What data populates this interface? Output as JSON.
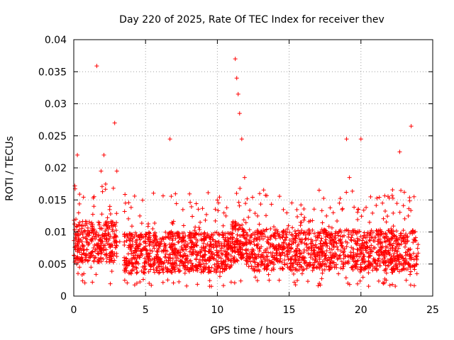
{
  "chart_data": {
    "type": "scatter",
    "title": "Day 220 of 2025, Rate Of TEC Index for receiver thev",
    "xlabel": "GPS time / hours",
    "ylabel": "ROTI / TECUs",
    "xlim": [
      0,
      25
    ],
    "ylim": [
      0,
      0.04
    ],
    "xticks": [
      0,
      5,
      10,
      15,
      20,
      25
    ],
    "xtick_labels": [
      "0",
      "5",
      "10",
      "15",
      "20",
      "25"
    ],
    "yticks": [
      0,
      0.005,
      0.01,
      0.015,
      0.02,
      0.025,
      0.03,
      0.035,
      0.04
    ],
    "ytick_labels": [
      "0",
      "0.005",
      "0.01",
      "0.015",
      "0.02",
      "0.025",
      "0.03",
      "0.035",
      "0.04"
    ],
    "grid": true,
    "marker": "+",
    "colors": {
      "series": "#ff0000",
      "grid": "#a0a0a0",
      "axis": "#000000"
    },
    "series": [
      {
        "x": [
          0.1,
          0.15,
          0.25,
          0.3,
          0.4,
          0.55,
          0.7,
          0.85,
          1.0,
          1.2,
          1.4,
          1.6,
          1.75,
          1.9,
          2.1,
          2.3,
          2.5,
          2.7,
          2.85,
          3.0,
          3.2,
          3.6,
          3.8,
          4.0,
          4.3,
          4.6,
          4.9,
          5.2,
          5.5,
          5.8,
          6.1,
          6.4,
          6.7,
          7.0,
          7.3,
          7.6,
          7.9,
          8.2,
          8.5,
          8.8,
          9.1,
          9.4,
          9.7,
          10.0,
          10.3,
          10.6,
          10.9,
          11.1,
          11.25,
          11.35,
          11.45,
          11.55,
          11.7,
          11.9,
          12.2,
          12.5,
          12.8,
          13.1,
          13.4,
          13.7,
          14.0,
          14.3,
          14.6,
          14.9,
          15.2,
          15.5,
          15.8,
          16.1,
          16.4,
          16.7,
          17.0,
          17.3,
          17.6,
          17.9,
          18.2,
          18.5,
          18.8,
          19.0,
          19.2,
          19.4,
          19.6,
          19.8,
          20.0,
          20.3,
          20.6,
          20.9,
          21.2,
          21.5,
          21.8,
          22.1,
          22.4,
          22.7,
          23.0,
          23.3,
          23.5,
          23.7,
          23.9
        ],
        "y": [
          0.0055,
          0.012,
          0.022,
          0.0085,
          0.0045,
          0.011,
          0.0035,
          0.0065,
          0.0095,
          0.0045,
          0.014,
          0.0359,
          0.0075,
          0.0195,
          0.022,
          0.0105,
          0.0135,
          0.0065,
          0.027,
          0.0195,
          0.0085,
          0.0145,
          0.0055,
          0.0035,
          0.0075,
          0.0125,
          0.0045,
          0.0065,
          0.0105,
          0.0055,
          0.0085,
          0.0045,
          0.0245,
          0.0065,
          0.0095,
          0.0135,
          0.0055,
          0.0085,
          0.0045,
          0.0115,
          0.0065,
          0.0055,
          0.0095,
          0.0045,
          0.0075,
          0.0125,
          0.0055,
          0.0105,
          0.037,
          0.034,
          0.0315,
          0.0285,
          0.0245,
          0.0185,
          0.0085,
          0.0055,
          0.0125,
          0.0065,
          0.0045,
          0.0105,
          0.0075,
          0.0055,
          0.0135,
          0.0045,
          0.0085,
          0.0065,
          0.0115,
          0.0055,
          0.0075,
          0.0045,
          0.0095,
          0.0065,
          0.0125,
          0.0055,
          0.0085,
          0.0145,
          0.0065,
          0.0245,
          0.0185,
          0.0095,
          0.0055,
          0.0135,
          0.0245,
          0.0075,
          0.0115,
          0.0055,
          0.0095,
          0.0145,
          0.0065,
          0.0105,
          0.0075,
          0.0225,
          0.0085,
          0.0125,
          0.0265,
          0.0155,
          0.0035
        ]
      }
    ]
  }
}
